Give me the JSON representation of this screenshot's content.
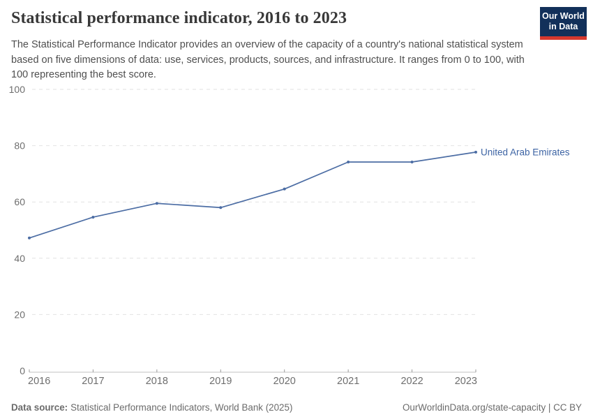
{
  "header": {
    "title": "Statistical performance indicator, 2016 to 2023",
    "logo": {
      "line1": "Our World",
      "line2": "in Data"
    }
  },
  "subtitle": "The Statistical Performance Indicator provides an overview of the capacity of a country's national statistical system based on five dimensions of data: use, services, products, sources, and infrastructure. It ranges from 0 to 100, with 100 representing the best score.",
  "chart_data": {
    "type": "line",
    "title": "Statistical performance indicator, 2016 to 2023",
    "x": [
      2016,
      2017,
      2018,
      2019,
      2020,
      2021,
      2022,
      2023
    ],
    "series": [
      {
        "name": "United Arab Emirates",
        "values": [
          47.2,
          54.6,
          59.5,
          58.0,
          64.6,
          74.2,
          74.2,
          77.7
        ],
        "color": "#4c6da4"
      }
    ],
    "xlabel": "",
    "ylabel": "",
    "ylim": [
      0,
      100
    ],
    "yticks": [
      0,
      20,
      40,
      60,
      80,
      100
    ],
    "grid": "horizontal-dashed",
    "legend_position": "right-of-last-point",
    "colors": {
      "grid": "#e2e2e2",
      "axis": "#c2c2c2",
      "tick": "#9a9a9a",
      "axis_label": "#6e6e6e",
      "entity_label": "#3d64a4"
    }
  },
  "footer": {
    "source_label": "Data source:",
    "source_value": "Statistical Performance Indicators, World Bank (2025)",
    "link": "OurWorldinData.org/state-capacity | CC BY"
  }
}
